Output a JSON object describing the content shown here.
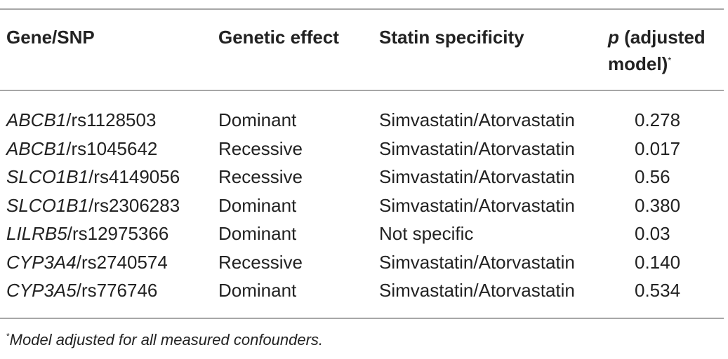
{
  "table": {
    "headers": {
      "gene_snp": "Gene/SNP",
      "genetic_effect": "Genetic effect",
      "statin_specificity": "Statin specificity",
      "p_label": "p",
      "p_rest_line1": " (adjusted",
      "p_line2": "model)",
      "p_marker": "*"
    },
    "rows": [
      {
        "gene": "ABCB1",
        "snp": "/rs1128503",
        "effect": "Dominant",
        "specificity": "Simvastatin/Atorvastatin",
        "p": "0.278"
      },
      {
        "gene": "ABCB1",
        "snp": "/rs1045642",
        "effect": "Recessive",
        "specificity": "Simvastatin/Atorvastatin",
        "p": "0.017"
      },
      {
        "gene": "SLCO1B1",
        "snp": "/rs4149056",
        "effect": "Recessive",
        "specificity": "Simvastatin/Atorvastatin",
        "p": "0.56"
      },
      {
        "gene": "SLCO1B1",
        "snp": "/rs2306283",
        "effect": "Dominant",
        "specificity": "Simvastatin/Atorvastatin",
        "p": "0.380"
      },
      {
        "gene": "LILRB5",
        "snp": "/rs12975366",
        "effect": "Dominant",
        "specificity": "Not specific",
        "p": "0.03"
      },
      {
        "gene": "CYP3A4",
        "snp": "/rs2740574",
        "effect": "Recessive",
        "specificity": "Simvastatin/Atorvastatin",
        "p": "0.140"
      },
      {
        "gene": "CYP3A5",
        "snp": "/rs776746",
        "effect": "Dominant",
        "specificity": "Simvastatin/Atorvastatin",
        "p": "0.534"
      }
    ]
  },
  "footnote": {
    "marker": "*",
    "text": "Model adjusted for all measured confounders."
  }
}
